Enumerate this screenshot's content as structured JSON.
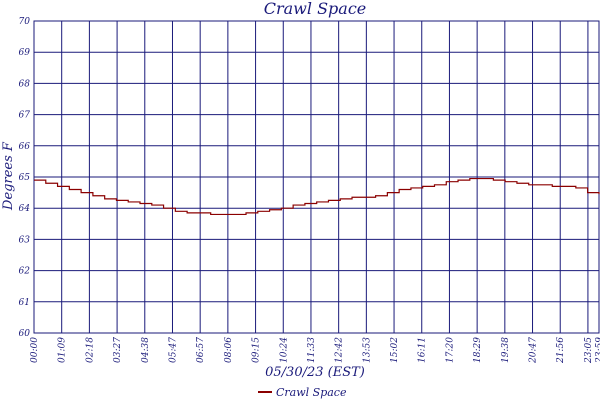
{
  "colors": {
    "grid": "#1a1a7a",
    "text": "#1a1a7a",
    "series": "#8b0000",
    "background": "#ffffff"
  },
  "chart_data": {
    "type": "line",
    "title": "Crawl Space",
    "xlabel": "05/30/23 (EST)",
    "ylabel": "Degrees F",
    "ylim": [
      60,
      70
    ],
    "yticks": [
      "60",
      "61",
      "62",
      "63",
      "64",
      "65",
      "66",
      "67",
      "68",
      "69",
      "70"
    ],
    "x_range_minutes": [
      0,
      1439
    ],
    "xticks": [
      "00:00",
      "01:09",
      "02:18",
      "03:27",
      "04:38",
      "05:47",
      "06:57",
      "08:06",
      "09:15",
      "10:24",
      "11:33",
      "12:42",
      "13:53",
      "15:02",
      "16:11",
      "17:20",
      "18:29",
      "19:38",
      "20:47",
      "21:56",
      "23:05",
      "23:59"
    ],
    "grid": true,
    "legend_position": "bottom-center",
    "series": [
      {
        "name": "Crawl Space",
        "x_minutes": [
          0,
          30,
          60,
          90,
          120,
          150,
          180,
          210,
          240,
          270,
          300,
          330,
          360,
          390,
          420,
          450,
          480,
          510,
          540,
          570,
          600,
          630,
          660,
          690,
          720,
          750,
          780,
          810,
          840,
          870,
          900,
          930,
          960,
          990,
          1020,
          1050,
          1080,
          1110,
          1140,
          1170,
          1200,
          1230,
          1260,
          1290,
          1320,
          1350,
          1380,
          1410,
          1439
        ],
        "values": [
          64.9,
          64.8,
          64.7,
          64.6,
          64.5,
          64.4,
          64.3,
          64.25,
          64.2,
          64.15,
          64.1,
          64.0,
          63.9,
          63.85,
          63.85,
          63.8,
          63.8,
          63.8,
          63.85,
          63.9,
          63.95,
          64.0,
          64.1,
          64.15,
          64.2,
          64.25,
          64.3,
          64.35,
          64.35,
          64.4,
          64.5,
          64.6,
          64.65,
          64.7,
          64.75,
          64.85,
          64.9,
          64.95,
          64.95,
          64.9,
          64.85,
          64.8,
          64.75,
          64.75,
          64.7,
          64.7,
          64.65,
          64.5,
          64.45
        ]
      }
    ]
  }
}
